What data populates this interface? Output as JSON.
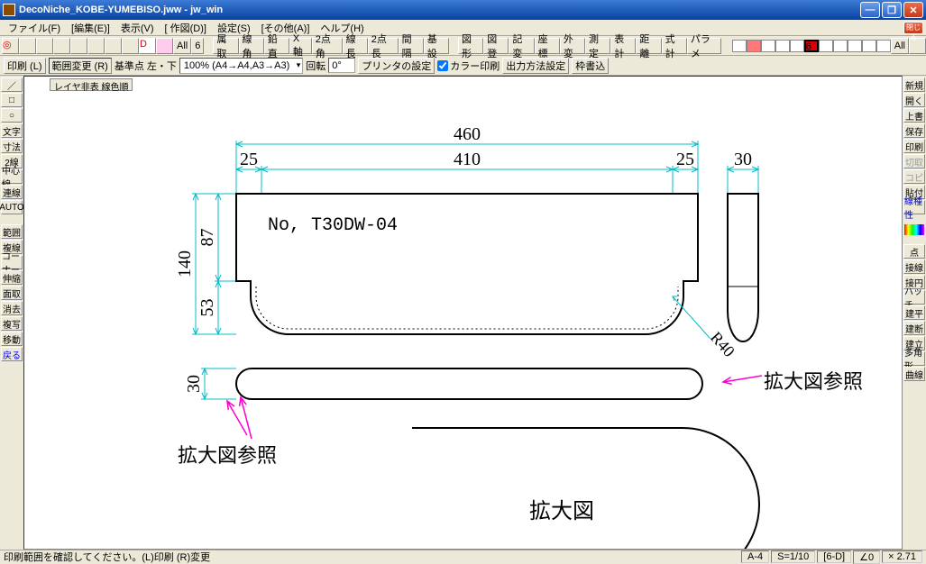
{
  "title": "DecoNiche_KOBE-YUMEBISO.jww - jw_win",
  "menu": [
    "ファイル(F)",
    "[編集(E)]",
    "表示(V)",
    "[ 作図(D)]",
    "設定(S)",
    "[その他(A)]",
    "ヘルプ(H)"
  ],
  "tb1": {
    "all": "All",
    "six": "6",
    "allr": "All",
    "mid": [
      "属取",
      "線角",
      "鉛直",
      "X軸",
      "2点角",
      "線長",
      "2点長",
      "間隔",
      "基設"
    ],
    "mid2": [
      "図形",
      "図登",
      "記変",
      "座標",
      "外変",
      "測定",
      "表計",
      "距離",
      "式計",
      "パラメ"
    ]
  },
  "tb2": {
    "print": "印刷 (L)",
    "range": "範囲変更 (R)",
    "base": "基準点 左・下",
    "zoom": "100% (A4→A4,A3→A3)",
    "rot": "回転",
    "ang": "0°",
    "printer": "プリンタの設定",
    "color": "カラー印刷",
    "out": "出力方法設定",
    "frame": "枠書込"
  },
  "left": [
    "／",
    "□",
    "○",
    "文字",
    "寸法",
    "2線",
    "中心線",
    "連線",
    "AUTO"
  ],
  "left2": [
    "範囲",
    "複線",
    "コーナー",
    "伸縮",
    "面取",
    "消去",
    "複写",
    "移動",
    "戻る"
  ],
  "right": [
    "新規",
    "開く",
    "上書",
    "保存",
    "印刷",
    "切取",
    "コピ",
    "貼付",
    "線種性"
  ],
  "right2": [
    "点",
    "接線",
    "接円",
    "ハッチ",
    "建平",
    "建断",
    "建立",
    "多角形",
    "曲線"
  ],
  "layerbtn": "レイヤ非表 線色順",
  "drawing": {
    "dims": {
      "w460": "460",
      "w410": "410",
      "w25l": "25",
      "w25r": "25",
      "w30": "30",
      "h140": "140",
      "h87": "87",
      "h53": "53",
      "r40": "R40",
      "h30": "30"
    },
    "partno": "No, T30DW-04",
    "ref1": "拡大図参照",
    "ref2": "拡大図参照",
    "enlarge": "拡大図",
    "cyan": "#00bcc8",
    "black": "#000000",
    "magenta": "#ff00cc",
    "dimfs": 20
  },
  "status": {
    "left": "印刷範囲を確認してください。(L)印刷 (R)変更",
    "a": "A-4",
    "s": "S=1/10",
    "g": "[6-D]",
    "ang": "∠0",
    "xy": "× 2.71"
  },
  "close": "閉じる"
}
